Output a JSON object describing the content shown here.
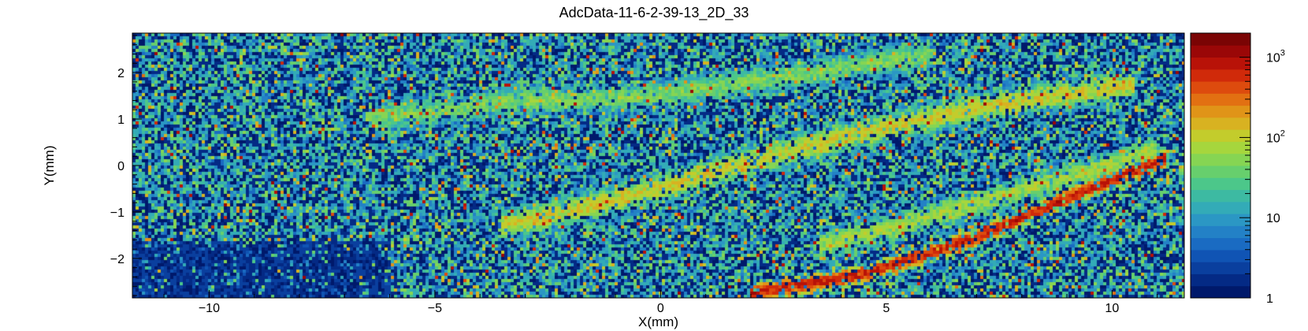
{
  "chart_data": {
    "type": "heatmap",
    "title": "AdcData-11-6-2-39-13_2D_33",
    "xlabel": "X(mm)",
    "ylabel": "Y(mm)",
    "xlim": [
      -11.7,
      11.6
    ],
    "ylim": [
      -2.85,
      2.85
    ],
    "x_ticks": [
      {
        "value": -10,
        "label": "−10"
      },
      {
        "value": -5,
        "label": "−5"
      },
      {
        "value": 0,
        "label": "0"
      },
      {
        "value": 5,
        "label": "5"
      },
      {
        "value": 10,
        "label": "10"
      }
    ],
    "y_ticks": [
      {
        "value": -2,
        "label": "−2"
      },
      {
        "value": -1,
        "label": "−1"
      },
      {
        "value": 0,
        "label": "0"
      },
      {
        "value": 1,
        "label": "1"
      },
      {
        "value": 2,
        "label": "2"
      }
    ],
    "z_scale": "log",
    "z_range": [
      1,
      2000
    ],
    "z_tick_labels": [
      {
        "value": 1,
        "base": "1",
        "exp": ""
      },
      {
        "value": 10,
        "base": "10",
        "exp": ""
      },
      {
        "value": 100,
        "base": "10",
        "exp": "2"
      },
      {
        "value": 1000,
        "base": "10",
        "exp": "3"
      }
    ],
    "palette": [
      "#00196b",
      "#042a85",
      "#0a3f9e",
      "#1054b4",
      "#1a6bc2",
      "#2381c6",
      "#2b97c4",
      "#33abb7",
      "#3dbaa2",
      "#4cc78a",
      "#67cf6d",
      "#86d553",
      "#a6d63d",
      "#c3cc2c",
      "#d8b221",
      "#e09418",
      "#e27012",
      "#dd4b0e",
      "#d02a0a",
      "#b81208",
      "#9a0707",
      "#7a0404"
    ],
    "features": [
      {
        "name": "",
        "points": [
          [
            -3.5,
            -1.3
          ],
          [
            -1.0,
            -0.75
          ],
          [
            1.5,
            -0.05
          ],
          [
            4.0,
            0.6
          ],
          [
            7.0,
            1.25
          ],
          [
            10.5,
            1.75
          ]
        ],
        "intensity": 140
      },
      {
        "name": "",
        "points": [
          [
            -6.5,
            1.0
          ],
          [
            -3.0,
            1.4
          ],
          [
            0.0,
            1.5
          ],
          [
            3.0,
            1.95
          ],
          [
            6.0,
            2.4
          ]
        ],
        "intensity": 60
      },
      {
        "name": "",
        "points": [
          [
            2.0,
            -2.75
          ],
          [
            4.5,
            -2.35
          ],
          [
            7.0,
            -1.55
          ],
          [
            9.5,
            -0.5
          ],
          [
            11.2,
            0.15
          ]
        ],
        "intensity": 900
      },
      {
        "name": "",
        "points": [
          [
            3.5,
            -1.75
          ],
          [
            6.0,
            -1.1
          ],
          [
            9.0,
            -0.25
          ],
          [
            11.0,
            0.35
          ]
        ],
        "intensity": 90
      }
    ]
  }
}
